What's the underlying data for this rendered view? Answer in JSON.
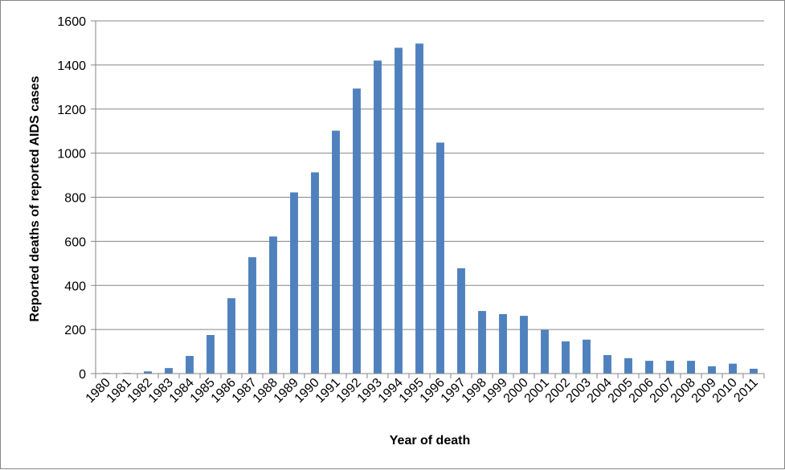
{
  "chart_data": {
    "type": "bar",
    "title": "",
    "xlabel": "Year of death",
    "ylabel": "Reported deaths of reported AIDS cases",
    "ylim": [
      0,
      1600
    ],
    "yticks": [
      0,
      200,
      400,
      600,
      800,
      1000,
      1200,
      1400,
      1600
    ],
    "grid": true,
    "legend": "none",
    "bar_color": "#4F81BD",
    "grid_color": "#868686",
    "categories": [
      "1980",
      "1981",
      "1982",
      "1983",
      "1984",
      "1985",
      "1986",
      "1987",
      "1988",
      "1989",
      "1990",
      "1991",
      "1992",
      "1993",
      "1994",
      "1995",
      "1996",
      "1997",
      "1998",
      "1999",
      "2000",
      "2001",
      "2002",
      "2003",
      "2004",
      "2005",
      "2006",
      "2007",
      "2008",
      "2009",
      "2010",
      "2011"
    ],
    "values": [
      3,
      3,
      10,
      25,
      80,
      175,
      342,
      528,
      622,
      822,
      913,
      1102,
      1293,
      1420,
      1478,
      1497,
      1048,
      478,
      284,
      270,
      262,
      198,
      146,
      154,
      84,
      70,
      58,
      58,
      58,
      33,
      45,
      22
    ]
  }
}
